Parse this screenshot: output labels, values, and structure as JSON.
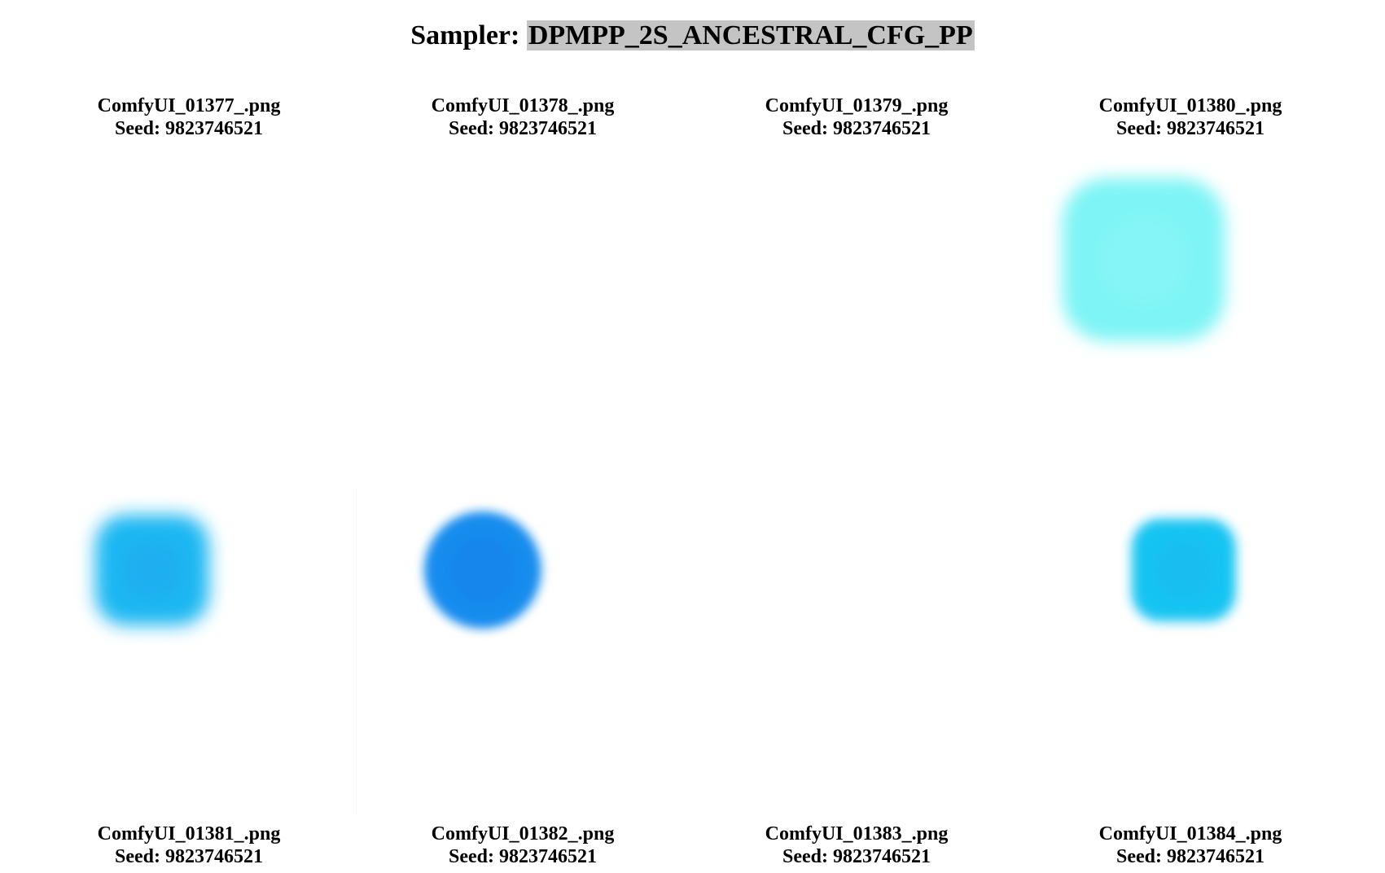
{
  "header": {
    "prefix": "Sampler: ",
    "sampler": "DPMPP_2S_ANCESTRAL_CFG_PP"
  },
  "images": [
    {
      "filename": "ComfyUI_01377_.png",
      "seed_text": "Seed: 9823746521",
      "blob": null
    },
    {
      "filename": "ComfyUI_01378_.png",
      "seed_text": "Seed: 9823746521",
      "blob": null
    },
    {
      "filename": "ComfyUI_01379_.png",
      "seed_text": "Seed: 9823746521",
      "blob": null
    },
    {
      "filename": "ComfyUI_01380_.png",
      "seed_text": "Seed: 9823746521",
      "blob": {
        "color": "#7ef4f6",
        "core": "#8ff6f8",
        "shape": "rounded-square"
      }
    },
    {
      "filename": "ComfyUI_01381_.png",
      "seed_text": "Seed: 9823746521",
      "blob": {
        "color": "#1eb8f2",
        "core": "#22a6ee",
        "shape": "rounded-square"
      }
    },
    {
      "filename": "ComfyUI_01382_.png",
      "seed_text": "Seed: 9823746521",
      "blob": {
        "color": "#168cee",
        "core": "#147fec",
        "shape": "circle"
      }
    },
    {
      "filename": "ComfyUI_01383_.png",
      "seed_text": "Seed: 9823746521",
      "blob": null
    },
    {
      "filename": "ComfyUI_01384_.png",
      "seed_text": "Seed: 9823746521",
      "blob": {
        "color": "#18c4f2",
        "core": "#1ab8f0",
        "shape": "rounded-square"
      }
    }
  ]
}
